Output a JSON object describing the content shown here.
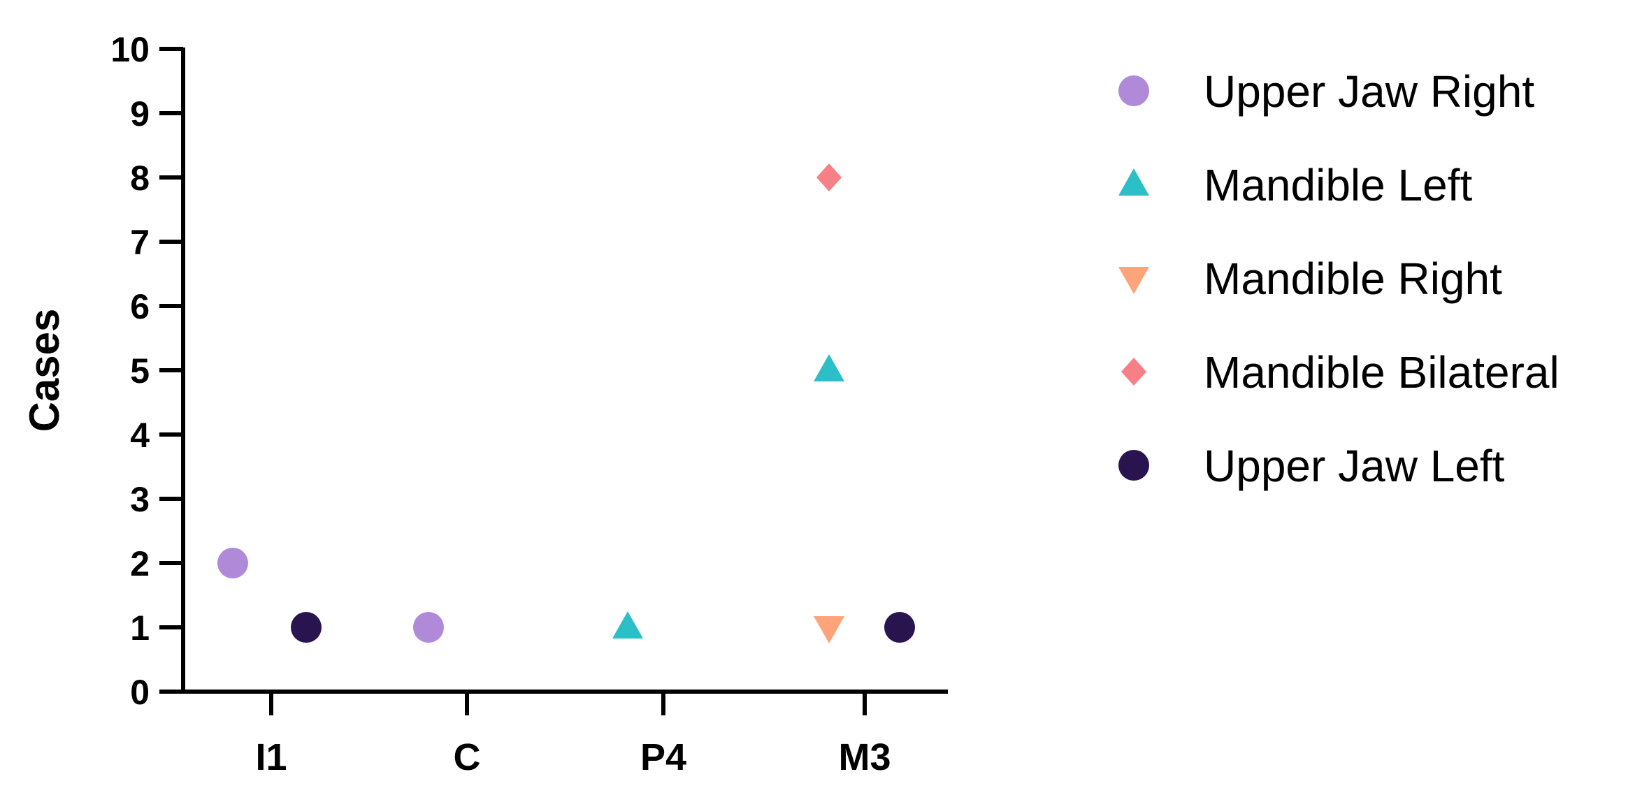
{
  "chart_data": {
    "type": "scatter",
    "title": "",
    "xlabel": "",
    "ylabel": "Cases",
    "ylim": [
      0,
      10
    ],
    "yticks": [
      "0",
      "1",
      "2",
      "3",
      "4",
      "5",
      "6",
      "7",
      "8",
      "9",
      "10"
    ],
    "categories": [
      "I1",
      "C",
      "P4",
      "M3"
    ],
    "grid": false,
    "legend_position": "right",
    "series": [
      {
        "name": "Upper Jaw Right",
        "marker": "circle",
        "color": "#b08ad8",
        "points": [
          {
            "category": "I1",
            "y": 2
          },
          {
            "category": "C",
            "y": 1
          }
        ]
      },
      {
        "name": "Mandible Left",
        "marker": "triangle-up",
        "color": "#2bbfc8",
        "points": [
          {
            "category": "P4",
            "y": 1
          },
          {
            "category": "M3",
            "y": 5
          }
        ]
      },
      {
        "name": "Mandible Right",
        "marker": "triangle-down",
        "color": "#ffa47a",
        "points": [
          {
            "category": "M3",
            "y": 1
          }
        ]
      },
      {
        "name": "Mandible Bilateral",
        "marker": "diamond",
        "color": "#f77f86",
        "points": [
          {
            "category": "M3",
            "y": 8
          }
        ]
      },
      {
        "name": "Upper Jaw Left",
        "marker": "circle",
        "color": "#2a1450",
        "points": [
          {
            "category": "I1",
            "y": 1
          },
          {
            "category": "M3",
            "y": 1
          }
        ]
      }
    ]
  }
}
